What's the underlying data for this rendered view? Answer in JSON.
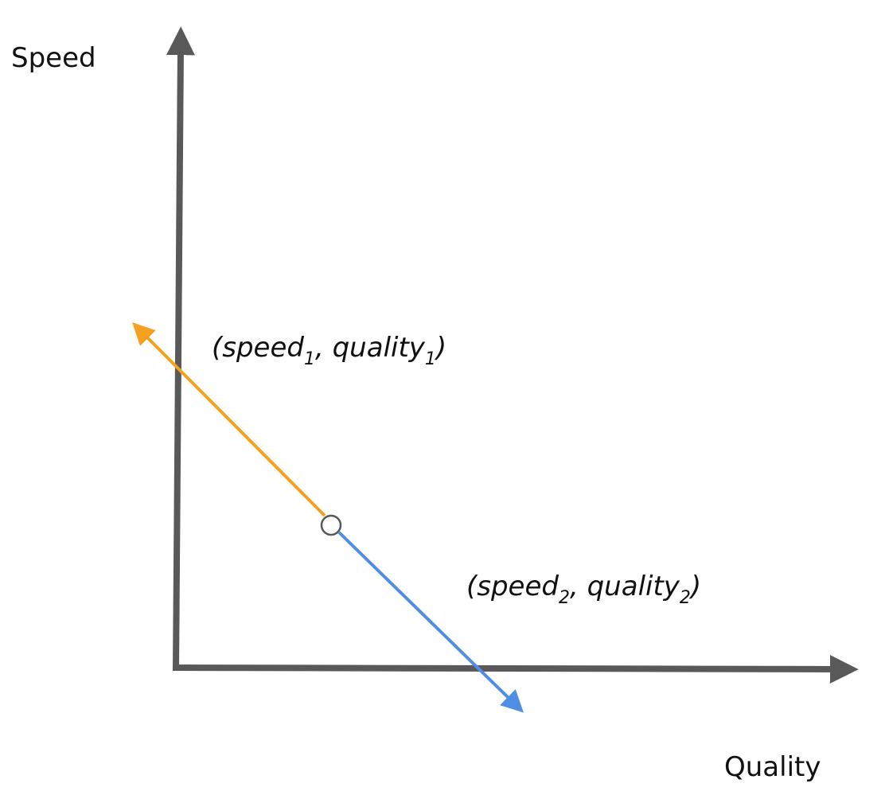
{
  "axes": {
    "y_label": "Speed",
    "x_label": "Quality"
  },
  "points": {
    "first": {
      "open": "(speed",
      "sub_a": "1",
      "mid": ", quality",
      "sub_b": "1",
      "close": ")"
    },
    "second": {
      "open": "(speed",
      "sub_a": "2",
      "mid": ", quality",
      "sub_b": "2",
      "close": ")"
    }
  },
  "colors": {
    "axis": "#595959",
    "orange_arrow": "#f5a01e",
    "blue_arrow": "#4f8ee2",
    "marker_fill": "#ffffff",
    "marker_stroke": "#595959"
  }
}
